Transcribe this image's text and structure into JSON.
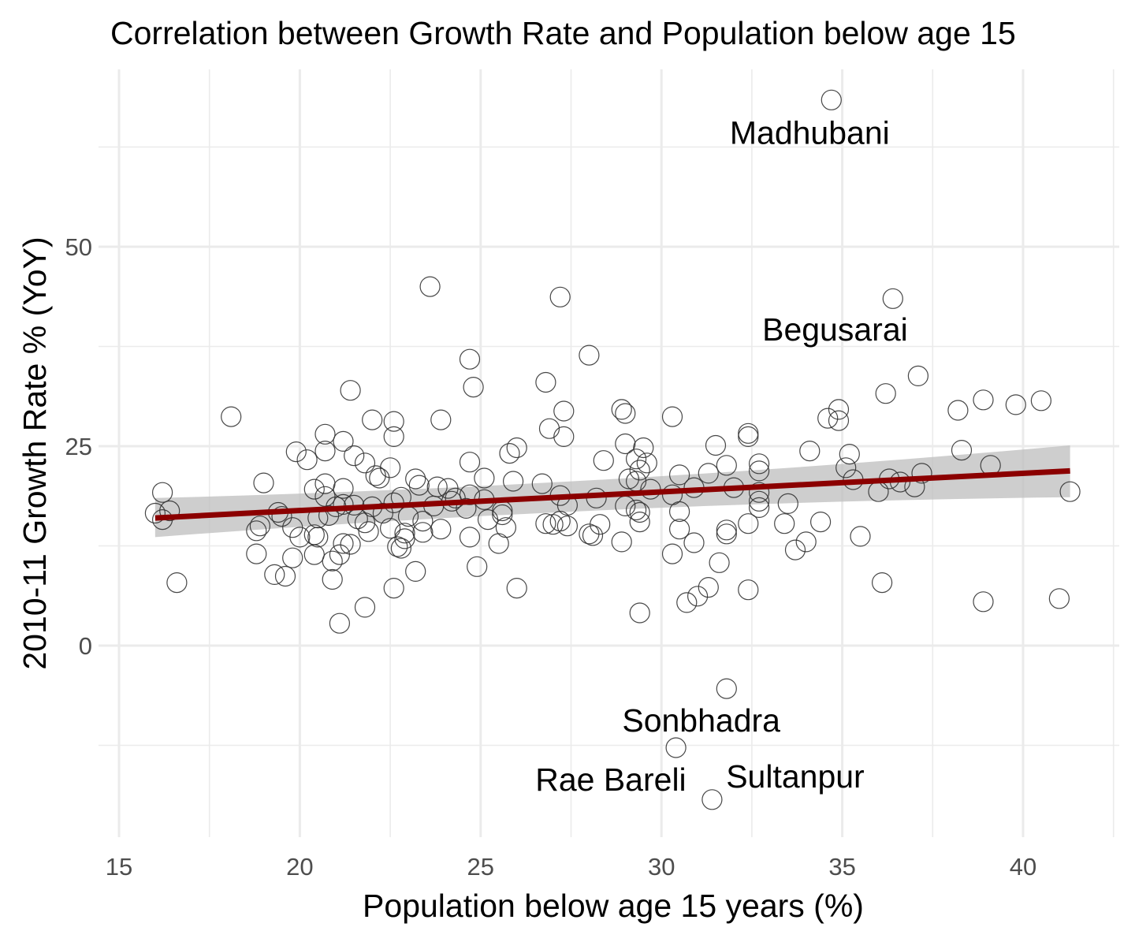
{
  "chart_data": {
    "type": "scatter",
    "title": "Correlation between Growth Rate and Population below age 15",
    "xlabel": "Population below age 15 years (%)",
    "ylabel": "2010-11 Growth Rate % (YoY)",
    "xlim": [
      14.5,
      42.5
    ],
    "ylim": [
      -19.5,
      72
    ],
    "x_ticks": [
      "15",
      "20",
      "25",
      "30",
      "35",
      "40"
    ],
    "y_ticks": [
      "0",
      "25",
      "50"
    ],
    "x_tick_values": [
      15,
      20,
      25,
      30,
      35,
      40
    ],
    "y_tick_values": [
      0,
      25,
      50
    ],
    "grid": true,
    "legend": "none",
    "colors": {
      "points": "#333333",
      "trend_line": "#8b0000",
      "confidence_band": "#bebebe",
      "grid": "#ebebeb"
    },
    "trend": {
      "x": [
        16.0,
        41.3
      ],
      "y": [
        16.0,
        21.9
      ],
      "ci_lower": [
        13.6,
        18.6
      ],
      "ci_upper": [
        18.5,
        25.1
      ]
    },
    "points": [
      [
        34.7,
        68.4
      ],
      [
        23.6,
        45.0
      ],
      [
        27.2,
        43.7
      ],
      [
        36.4,
        43.5
      ],
      [
        28.0,
        36.4
      ],
      [
        24.7,
        35.9
      ],
      [
        37.1,
        33.8
      ],
      [
        26.8,
        33.0
      ],
      [
        24.8,
        32.4
      ],
      [
        21.4,
        32.0
      ],
      [
        36.2,
        31.6
      ],
      [
        38.9,
        30.8
      ],
      [
        40.5,
        30.7
      ],
      [
        39.8,
        30.2
      ],
      [
        34.9,
        29.6
      ],
      [
        28.9,
        29.6
      ],
      [
        38.2,
        29.5
      ],
      [
        27.3,
        29.4
      ],
      [
        29.0,
        29.1
      ],
      [
        18.1,
        28.7
      ],
      [
        30.3,
        28.7
      ],
      [
        34.6,
        28.5
      ],
      [
        34.9,
        28.2
      ],
      [
        23.9,
        28.3
      ],
      [
        22.0,
        28.3
      ],
      [
        22.6,
        28.1
      ],
      [
        26.9,
        27.2
      ],
      [
        32.4,
        26.6
      ],
      [
        20.7,
        26.5
      ],
      [
        27.3,
        26.2
      ],
      [
        22.6,
        26.2
      ],
      [
        32.4,
        26.2
      ],
      [
        21.2,
        25.6
      ],
      [
        29.0,
        25.3
      ],
      [
        31.5,
        25.1
      ],
      [
        29.5,
        24.8
      ],
      [
        26.0,
        24.8
      ],
      [
        20.7,
        24.4
      ],
      [
        38.3,
        24.5
      ],
      [
        34.1,
        24.4
      ],
      [
        19.9,
        24.3
      ],
      [
        25.8,
        24.1
      ],
      [
        35.2,
        24.0
      ],
      [
        21.5,
        23.8
      ],
      [
        20.2,
        23.3
      ],
      [
        29.3,
        23.4
      ],
      [
        28.4,
        23.2
      ],
      [
        24.7,
        23.0
      ],
      [
        29.6,
        22.9
      ],
      [
        21.8,
        22.9
      ],
      [
        32.7,
        22.8
      ],
      [
        31.8,
        22.6
      ],
      [
        39.1,
        22.6
      ],
      [
        22.5,
        22.3
      ],
      [
        35.1,
        22.3
      ],
      [
        29.4,
        22.0
      ],
      [
        32.7,
        21.9
      ],
      [
        37.2,
        21.6
      ],
      [
        22.1,
        21.3
      ],
      [
        31.3,
        21.6
      ],
      [
        30.5,
        21.4
      ],
      [
        29.1,
        20.9
      ],
      [
        25.1,
        21.0
      ],
      [
        22.2,
        21.0
      ],
      [
        23.2,
        20.9
      ],
      [
        35.3,
        20.8
      ],
      [
        36.3,
        20.9
      ],
      [
        25.9,
        20.6
      ],
      [
        29.3,
        20.6
      ],
      [
        19.0,
        20.4
      ],
      [
        26.7,
        20.3
      ],
      [
        36.6,
        20.5
      ],
      [
        20.7,
        20.3
      ],
      [
        23.3,
        20.1
      ],
      [
        23.8,
        19.9
      ],
      [
        37.0,
        19.9
      ],
      [
        32.0,
        19.8
      ],
      [
        30.9,
        19.8
      ],
      [
        24.1,
        19.7
      ],
      [
        21.2,
        19.7
      ],
      [
        20.4,
        19.6
      ],
      [
        36.0,
        19.3
      ],
      [
        16.2,
        19.2
      ],
      [
        41.3,
        19.3
      ],
      [
        29.7,
        19.6
      ],
      [
        32.7,
        19.2
      ],
      [
        30.3,
        18.9
      ],
      [
        24.7,
        18.9
      ],
      [
        27.2,
        18.8
      ],
      [
        20.7,
        18.7
      ],
      [
        24.3,
        18.5
      ],
      [
        28.2,
        18.5
      ],
      [
        22.8,
        18.6
      ],
      [
        25.1,
        18.3
      ],
      [
        32.7,
        18.1
      ],
      [
        24.2,
        18.1
      ],
      [
        22.6,
        17.9
      ],
      [
        33.5,
        17.8
      ],
      [
        21.2,
        17.7
      ],
      [
        27.4,
        17.6
      ],
      [
        21.5,
        17.6
      ],
      [
        29.0,
        17.5
      ],
      [
        23.7,
        17.5
      ],
      [
        22.0,
        17.4
      ],
      [
        21.0,
        17.4
      ],
      [
        32.7,
        17.3
      ],
      [
        24.6,
        17.2
      ],
      [
        29.3,
        17.0
      ],
      [
        30.5,
        16.8
      ],
      [
        16.4,
        16.9
      ],
      [
        25.6,
        16.9
      ],
      [
        19.4,
        16.7
      ],
      [
        16.0,
        16.6
      ],
      [
        29.4,
        16.7
      ],
      [
        22.3,
        16.6
      ],
      [
        20.8,
        16.3
      ],
      [
        23.0,
        16.2
      ],
      [
        25.6,
        16.4
      ],
      [
        19.5,
        16.2
      ],
      [
        21.6,
        15.9
      ],
      [
        20.5,
        16.0
      ],
      [
        25.2,
        15.8
      ],
      [
        23.4,
        15.6
      ],
      [
        27.2,
        15.6
      ],
      [
        16.2,
        15.8
      ],
      [
        29.4,
        15.5
      ],
      [
        26.8,
        15.3
      ],
      [
        34.4,
        15.5
      ],
      [
        21.8,
        15.4
      ],
      [
        32.4,
        15.3
      ],
      [
        18.9,
        15.0
      ],
      [
        33.4,
        15.3
      ],
      [
        27.0,
        15.2
      ],
      [
        28.3,
        15.2
      ],
      [
        19.8,
        14.8
      ],
      [
        27.4,
        15.0
      ],
      [
        25.7,
        14.8
      ],
      [
        22.5,
        14.7
      ],
      [
        18.8,
        14.4
      ],
      [
        30.5,
        14.6
      ],
      [
        31.8,
        14.5
      ],
      [
        23.9,
        14.6
      ],
      [
        21.9,
        14.3
      ],
      [
        31.8,
        14.0
      ],
      [
        22.9,
        14.1
      ],
      [
        23.4,
        14.2
      ],
      [
        28.0,
        14.0
      ],
      [
        28.1,
        13.8
      ],
      [
        20.4,
        13.9
      ],
      [
        20.5,
        13.6
      ],
      [
        24.7,
        13.6
      ],
      [
        35.5,
        13.7
      ],
      [
        20.0,
        13.6
      ],
      [
        22.9,
        13.4
      ],
      [
        34.0,
        13.0
      ],
      [
        28.9,
        13.0
      ],
      [
        25.5,
        12.8
      ],
      [
        30.9,
        12.9
      ],
      [
        21.2,
        12.8
      ],
      [
        21.4,
        12.7
      ],
      [
        22.7,
        12.4
      ],
      [
        22.8,
        12.2
      ],
      [
        33.7,
        12.0
      ],
      [
        20.4,
        11.4
      ],
      [
        18.8,
        11.5
      ],
      [
        30.3,
        11.5
      ],
      [
        19.8,
        11.0
      ],
      [
        21.1,
        11.4
      ],
      [
        20.9,
        10.6
      ],
      [
        31.6,
        10.4
      ],
      [
        24.9,
        9.9
      ],
      [
        23.2,
        9.3
      ],
      [
        19.3,
        8.9
      ],
      [
        19.6,
        8.7
      ],
      [
        20.9,
        8.3
      ],
      [
        16.6,
        7.9
      ],
      [
        36.1,
        7.9
      ],
      [
        22.6,
        7.2
      ],
      [
        26.0,
        7.2
      ],
      [
        32.4,
        7.0
      ],
      [
        31.3,
        7.3
      ],
      [
        31.0,
        6.2
      ],
      [
        41.0,
        5.9
      ],
      [
        38.9,
        5.5
      ],
      [
        30.7,
        5.4
      ],
      [
        21.8,
        4.8
      ],
      [
        29.4,
        4.1
      ],
      [
        21.1,
        2.8
      ],
      [
        31.8,
        -5.4
      ],
      [
        30.4,
        -12.8
      ],
      [
        31.4,
        -19.3
      ]
    ],
    "annotations": [
      {
        "text": "Madhubani",
        "x": 34.1,
        "y": 64.3
      },
      {
        "text": "Begusarai",
        "x": 34.8,
        "y": 39.6
      },
      {
        "text": "Sonbhadra",
        "x": 31.1,
        "y": -9.4
      },
      {
        "text": "Rae Bareli",
        "x": 28.6,
        "y": -16.8
      },
      {
        "text": "Sultanpur",
        "x": 33.7,
        "y": -16.4
      }
    ]
  }
}
